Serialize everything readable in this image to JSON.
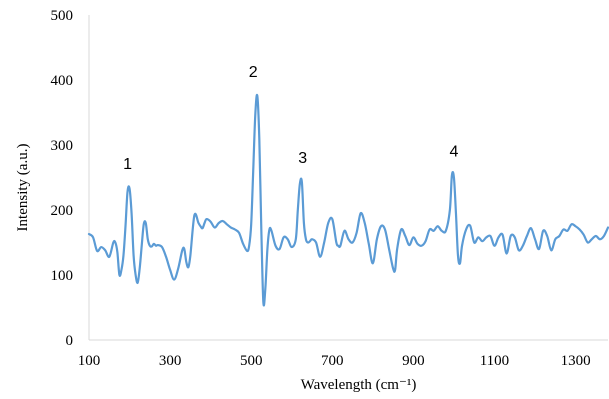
{
  "chart_data": {
    "type": "line",
    "title": "",
    "xlabel": "Wavelength (cm⁻¹)",
    "ylabel": "Intensity (a.u.)",
    "xlim": [
      100,
      1380
    ],
    "ylim": [
      0,
      500
    ],
    "xticks": [
      100,
      300,
      500,
      700,
      900,
      1100,
      1300
    ],
    "yticks": [
      0,
      100,
      200,
      300,
      400,
      500
    ],
    "grid": false,
    "legend": "none",
    "line_color": "#5b9bd5",
    "series": [
      {
        "x": [
          100,
          110,
          120,
          130,
          140,
          150,
          160,
          165,
          170,
          175,
          180,
          185,
          190,
          195,
          200,
          205,
          210,
          215,
          220,
          225,
          230,
          235,
          240,
          245,
          250,
          255,
          260,
          265,
          270,
          280,
          290,
          300,
          310,
          320,
          330,
          335,
          340,
          345,
          350,
          360,
          370,
          375,
          380,
          385,
          390,
          400,
          410,
          420,
          430,
          440,
          450,
          460,
          470,
          480,
          490,
          495,
          500,
          505,
          510,
          515,
          520,
          525,
          530,
          535,
          540,
          545,
          550,
          560,
          570,
          580,
          590,
          600,
          610,
          615,
          620,
          625,
          630,
          635,
          640,
          645,
          650,
          660,
          670,
          680,
          690,
          700,
          710,
          715,
          720,
          730,
          740,
          750,
          760,
          770,
          780,
          790,
          800,
          810,
          820,
          830,
          840,
          850,
          855,
          860,
          870,
          880,
          890,
          900,
          910,
          920,
          930,
          940,
          950,
          960,
          970,
          980,
          990,
          995,
          1000,
          1005,
          1010,
          1015,
          1020,
          1030,
          1040,
          1050,
          1060,
          1070,
          1080,
          1090,
          1100,
          1110,
          1120,
          1130,
          1140,
          1150,
          1160,
          1170,
          1180,
          1190,
          1200,
          1210,
          1220,
          1230,
          1240,
          1250,
          1260,
          1270,
          1280,
          1290,
          1300,
          1310,
          1320,
          1330,
          1340,
          1350,
          1360,
          1370,
          1380
        ],
        "y": [
          163,
          158,
          137,
          143,
          138,
          128,
          150,
          150,
          135,
          100,
          108,
          130,
          175,
          228,
          233,
          195,
          130,
          100,
          88,
          110,
          145,
          178,
          180,
          155,
          145,
          144,
          148,
          145,
          146,
          143,
          128,
          108,
          93,
          110,
          138,
          140,
          120,
          112,
          130,
          192,
          180,
          175,
          172,
          180,
          186,
          182,
          173,
          180,
          183,
          178,
          173,
          170,
          165,
          148,
          137,
          145,
          178,
          260,
          345,
          376,
          310,
          170,
          58,
          80,
          140,
          170,
          168,
          145,
          140,
          158,
          155,
          143,
          155,
          200,
          240,
          243,
          180,
          155,
          150,
          152,
          155,
          150,
          128,
          150,
          180,
          186,
          150,
          145,
          145,
          168,
          155,
          150,
          165,
          195,
          180,
          148,
          118,
          155,
          175,
          170,
          140,
          110,
          108,
          140,
          170,
          160,
          146,
          158,
          148,
          145,
          152,
          170,
          168,
          175,
          168,
          168,
          200,
          253,
          250,
          195,
          130,
          118,
          145,
          170,
          176,
          150,
          158,
          152,
          158,
          160,
          145,
          158,
          162,
          133,
          160,
          158,
          138,
          145,
          160,
          172,
          155,
          140,
          168,
          160,
          138,
          155,
          160,
          170,
          168,
          178,
          175,
          170,
          162,
          150,
          155,
          160,
          155,
          160,
          173
        ]
      }
    ],
    "annotations": [
      {
        "text": "1",
        "x": 195,
        "y": 263
      },
      {
        "text": "2",
        "x": 505,
        "y": 405
      },
      {
        "text": "3",
        "x": 627,
        "y": 272
      },
      {
        "text": "4",
        "x": 1000,
        "y": 282
      }
    ]
  }
}
